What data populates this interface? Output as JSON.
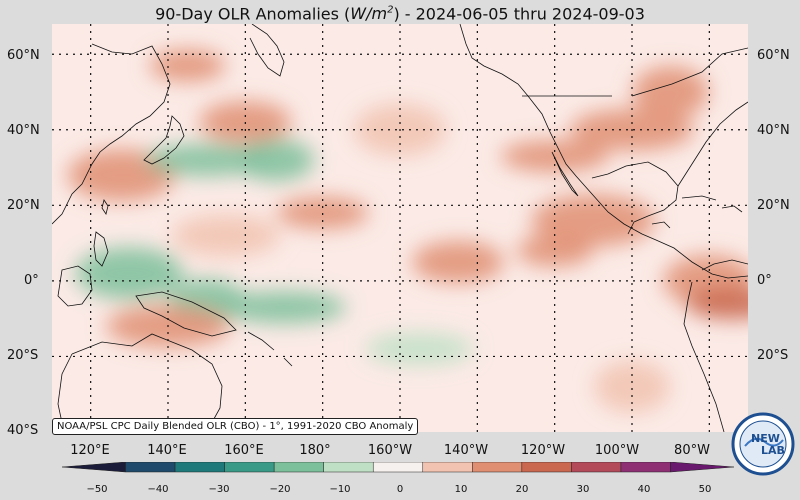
{
  "title": {
    "prefix": "90-Day OLR Anomalies (",
    "unit_base": "W/m",
    "unit_exp": "2",
    "suffix": ") - 2024-06-05 thru 2024-09-03"
  },
  "lat_labels": [
    "60°N",
    "40°N",
    "20°N",
    "0°",
    "20°S",
    "40°S"
  ],
  "lon_labels": [
    "120°E",
    "140°E",
    "160°E",
    "180°",
    "160°W",
    "140°W",
    "120°W",
    "100°W",
    "80°W"
  ],
  "credit": "NOAA/PSL CPC Daily Blended OLR (CBO) - 1°, 1991-2020 CBO Anomaly",
  "colorbar": {
    "ticks": [
      "−50",
      "−40",
      "−30",
      "−20",
      "−10",
      "0",
      "10",
      "20",
      "30",
      "40",
      "50"
    ],
    "colors": [
      "#1b1c3a",
      "#1f4a6b",
      "#1e7a7a",
      "#3a9a88",
      "#7cbf9b",
      "#bfe0c5",
      "#f6f1ee",
      "#f1c3b0",
      "#e08f73",
      "#c9674f",
      "#b24a5a",
      "#8e2f74",
      "#6a1a6e"
    ]
  },
  "logo": {
    "text_a": "NEW",
    "text_b": "LAB",
    "ring_text": "NEWLAB PSL"
  },
  "chart_data": {
    "type": "heatmap",
    "title": "90-Day OLR Anomalies (W/m2) - 2024-06-05 thru 2024-09-03",
    "xlim": [
      110,
      290
    ],
    "ylim": [
      -40,
      68
    ],
    "value_range": [
      -50,
      50
    ],
    "value_unit": "W/m2",
    "regions": [
      {
        "lon": 145,
        "lat": 57,
        "value": 15
      },
      {
        "lon": 160,
        "lat": 42,
        "value": 15
      },
      {
        "lon": 128,
        "lat": 28,
        "value": 15
      },
      {
        "lon": 150,
        "lat": 32,
        "value": -20
      },
      {
        "lon": 168,
        "lat": 32,
        "value": -15
      },
      {
        "lon": 200,
        "lat": 40,
        "value": 10
      },
      {
        "lon": 240,
        "lat": 33,
        "value": 18
      },
      {
        "lon": 260,
        "lat": 40,
        "value": 20
      },
      {
        "lon": 270,
        "lat": 50,
        "value": 15
      },
      {
        "lon": 180,
        "lat": 18,
        "value": 15
      },
      {
        "lon": 155,
        "lat": 12,
        "value": 12
      },
      {
        "lon": 250,
        "lat": 16,
        "value": 20
      },
      {
        "lon": 240,
        "lat": 8,
        "value": 20
      },
      {
        "lon": 215,
        "lat": 5,
        "value": 15
      },
      {
        "lon": 130,
        "lat": 2,
        "value": -20
      },
      {
        "lon": 170,
        "lat": -7,
        "value": -20
      },
      {
        "lon": 150,
        "lat": -5,
        "value": -15
      },
      {
        "lon": 280,
        "lat": 0,
        "value": 15
      },
      {
        "lon": 205,
        "lat": -18,
        "value": -10
      },
      {
        "lon": 140,
        "lat": -12,
        "value": 15
      },
      {
        "lon": 260,
        "lat": -28,
        "value": 10
      },
      {
        "lon": 286,
        "lat": -6,
        "value": 25
      }
    ]
  }
}
